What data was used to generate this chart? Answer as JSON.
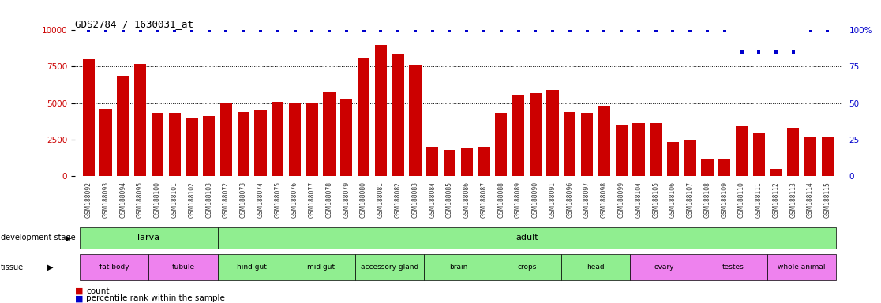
{
  "title": "GDS2784 / 1630031_at",
  "samples": [
    "GSM188092",
    "GSM188093",
    "GSM188094",
    "GSM188095",
    "GSM188100",
    "GSM188101",
    "GSM188102",
    "GSM188103",
    "GSM188072",
    "GSM188073",
    "GSM188074",
    "GSM188075",
    "GSM188076",
    "GSM188077",
    "GSM188078",
    "GSM188079",
    "GSM188080",
    "GSM188081",
    "GSM188082",
    "GSM188083",
    "GSM188084",
    "GSM188085",
    "GSM188086",
    "GSM188087",
    "GSM188088",
    "GSM188089",
    "GSM188090",
    "GSM188091",
    "GSM188096",
    "GSM188097",
    "GSM188098",
    "GSM188099",
    "GSM188104",
    "GSM188105",
    "GSM188106",
    "GSM188107",
    "GSM188108",
    "GSM188109",
    "GSM188110",
    "GSM188111",
    "GSM188112",
    "GSM188113",
    "GSM188114",
    "GSM188115"
  ],
  "counts": [
    8000,
    4600,
    6900,
    7700,
    4300,
    4300,
    4000,
    4100,
    5000,
    4400,
    4500,
    5100,
    5000,
    5000,
    5800,
    5300,
    8100,
    9000,
    8400,
    7600,
    2000,
    1800,
    1900,
    2000,
    4300,
    5600,
    5700,
    5900,
    4400,
    4300,
    4800,
    3500,
    3600,
    3600,
    2300,
    2400,
    1100,
    1200,
    3400,
    2900,
    500,
    3300,
    2700,
    2700
  ],
  "percentile_ranks": [
    100,
    100,
    100,
    100,
    100,
    100,
    100,
    100,
    100,
    100,
    100,
    100,
    100,
    100,
    100,
    100,
    100,
    100,
    100,
    100,
    100,
    100,
    100,
    100,
    100,
    100,
    100,
    100,
    100,
    100,
    100,
    100,
    100,
    100,
    100,
    100,
    100,
    100,
    85,
    85,
    85,
    85,
    100,
    100
  ],
  "bar_color": "#cc0000",
  "dot_color": "#0000cc",
  "ylim_left": [
    0,
    10000
  ],
  "ylim_right": [
    0,
    100
  ],
  "yticks_left": [
    0,
    2500,
    5000,
    7500,
    10000
  ],
  "ytick_labels_left": [
    "0",
    "2500",
    "5000",
    "7500",
    "10000"
  ],
  "yticks_right": [
    0,
    25,
    50,
    75,
    100
  ],
  "ytick_labels_right": [
    "0",
    "25",
    "50",
    "75",
    "100%"
  ],
  "grid_lines": [
    2500,
    5000,
    7500
  ],
  "development_stages": [
    {
      "label": "larva",
      "start": 0,
      "end": 8,
      "color": "#90ee90"
    },
    {
      "label": "adult",
      "start": 8,
      "end": 44,
      "color": "#90ee90"
    }
  ],
  "tissues": [
    {
      "label": "fat body",
      "start": 0,
      "end": 4,
      "color": "#ee82ee"
    },
    {
      "label": "tubule",
      "start": 4,
      "end": 8,
      "color": "#ee82ee"
    },
    {
      "label": "hind gut",
      "start": 8,
      "end": 12,
      "color": "#90ee90"
    },
    {
      "label": "mid gut",
      "start": 12,
      "end": 16,
      "color": "#90ee90"
    },
    {
      "label": "accessory gland",
      "start": 16,
      "end": 20,
      "color": "#90ee90"
    },
    {
      "label": "brain",
      "start": 20,
      "end": 24,
      "color": "#90ee90"
    },
    {
      "label": "crops",
      "start": 24,
      "end": 28,
      "color": "#90ee90"
    },
    {
      "label": "head",
      "start": 28,
      "end": 32,
      "color": "#90ee90"
    },
    {
      "label": "ovary",
      "start": 32,
      "end": 36,
      "color": "#ee82ee"
    },
    {
      "label": "testes",
      "start": 36,
      "end": 40,
      "color": "#ee82ee"
    },
    {
      "label": "whole animal",
      "start": 40,
      "end": 44,
      "color": "#ee82ee"
    }
  ],
  "bg_color": "#ffffff",
  "bar_width": 0.7,
  "fig_width": 11.16,
  "fig_height": 3.84,
  "dpi": 100
}
